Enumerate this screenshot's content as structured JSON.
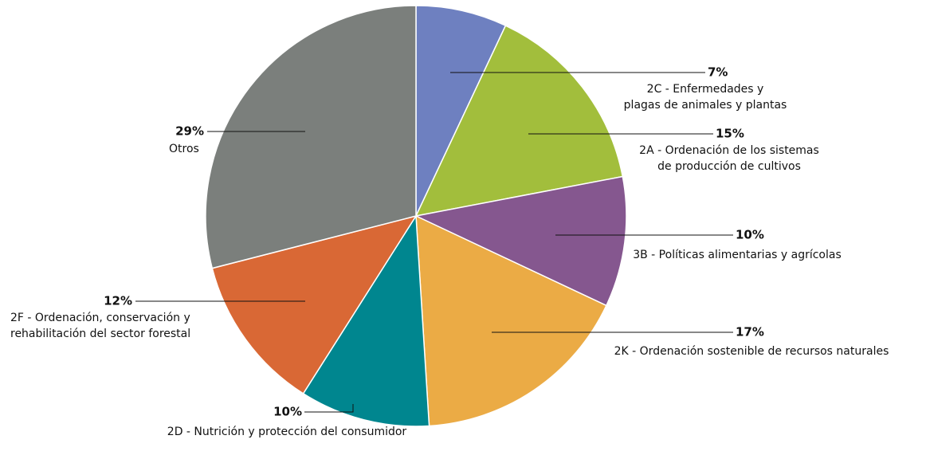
{
  "chart_data": {
    "type": "pie",
    "categories": [
      "2C - Enfermedades y\nplagas de animales y plantas",
      "2A - Ordenación de los sistemas\nde producción de cultivos",
      "3B - Políticas alimentarias y agrícolas",
      "2K - Ordenación sostenible de recursos naturales",
      "2D - Nutrición y protección del consumidor",
      "2F - Ordenación, conservación y\nrehabilitación del sector forestal",
      "Otros"
    ],
    "values": [
      7,
      15,
      10,
      17,
      10,
      12,
      29
    ],
    "value_labels": [
      "7%",
      "15%",
      "10%",
      "17%",
      "10%",
      "12%",
      "29%"
    ],
    "colors": [
      "#6e80c0",
      "#a2be3c",
      "#85578f",
      "#ebab45",
      "#00868f",
      "#d96835",
      "#7b7f7c"
    ]
  }
}
